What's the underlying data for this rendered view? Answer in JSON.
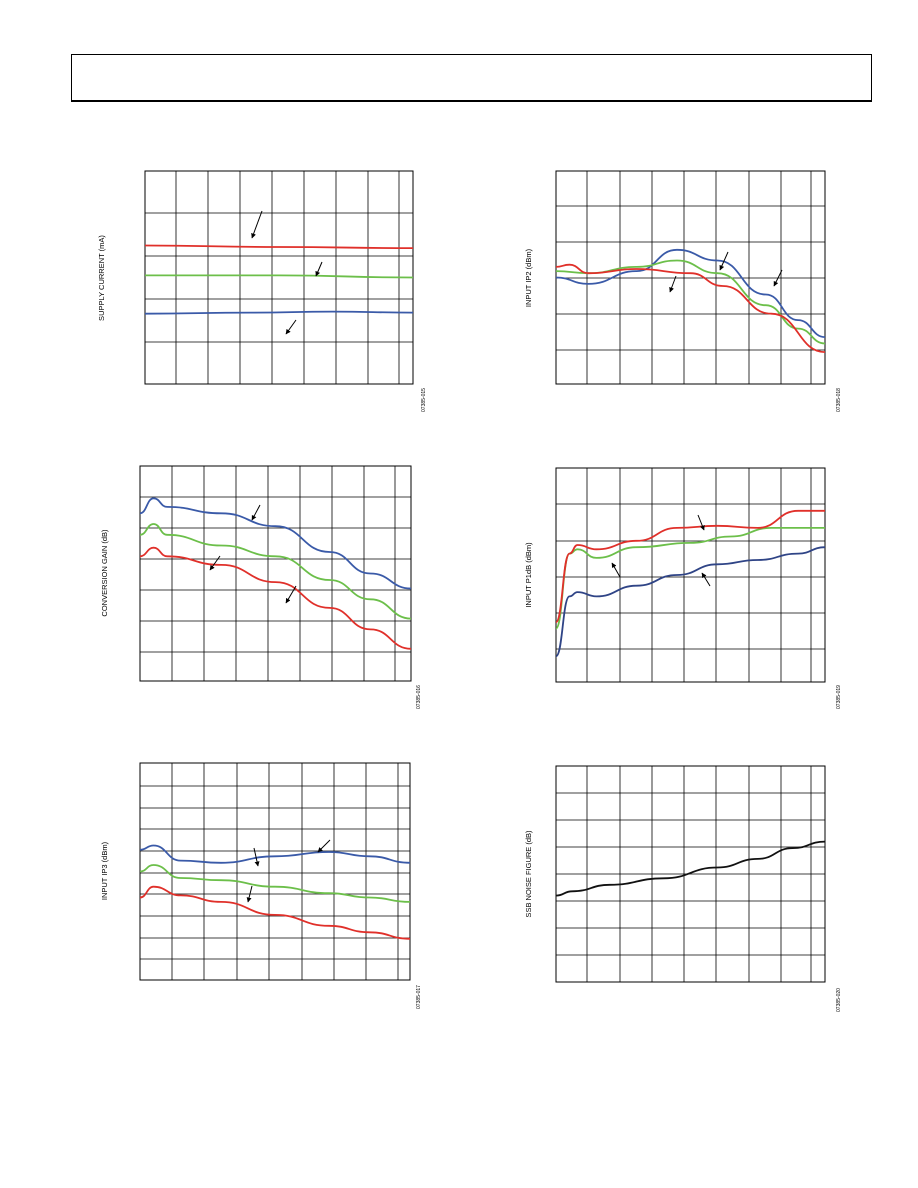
{
  "chart_data": [
    {
      "type": "line",
      "ylabel": "SUPPLY CURRENT (mA)",
      "figure_id": "07385-015",
      "series": [
        {
          "color": "#3a5aa8",
          "points": [
            [
              0,
              0.33
            ],
            [
              0.4,
              0.335
            ],
            [
              0.7,
              0.34
            ],
            [
              1,
              0.335
            ]
          ]
        },
        {
          "color": "#6cbf4a",
          "points": [
            [
              0,
              0.51
            ],
            [
              0.5,
              0.51
            ],
            [
              1,
              0.5
            ]
          ]
        },
        {
          "color": "#e0302a",
          "points": [
            [
              0,
              0.65
            ],
            [
              0.5,
              0.643
            ],
            [
              1,
              0.638
            ]
          ]
        }
      ]
    },
    {
      "type": "line",
      "ylabel": "INPUT IP2 (dBm)",
      "figure_id": "07385-018",
      "series": [
        {
          "color": "#3a5aa8",
          "points": [
            [
              0,
              0.5
            ],
            [
              0.12,
              0.47
            ],
            [
              0.3,
              0.53
            ],
            [
              0.45,
              0.63
            ],
            [
              0.6,
              0.58
            ],
            [
              0.78,
              0.42
            ],
            [
              0.9,
              0.3
            ],
            [
              1,
              0.22
            ]
          ]
        },
        {
          "color": "#6cbf4a",
          "points": [
            [
              0,
              0.53
            ],
            [
              0.12,
              0.52
            ],
            [
              0.3,
              0.55
            ],
            [
              0.45,
              0.58
            ],
            [
              0.6,
              0.52
            ],
            [
              0.78,
              0.37
            ],
            [
              0.9,
              0.26
            ],
            [
              1,
              0.19
            ]
          ]
        },
        {
          "color": "#e0302a",
          "points": [
            [
              0,
              0.55
            ],
            [
              0.05,
              0.56
            ],
            [
              0.12,
              0.52
            ],
            [
              0.3,
              0.54
            ],
            [
              0.5,
              0.52
            ],
            [
              0.62,
              0.46
            ],
            [
              0.8,
              0.33
            ],
            [
              1,
              0.15
            ]
          ]
        }
      ]
    },
    {
      "type": "line",
      "ylabel": "CONVERSION GAIN (dB)",
      "figure_id": "07385-016",
      "series": [
        {
          "color": "#3a5aa8",
          "points": [
            [
              0,
              0.78
            ],
            [
              0.05,
              0.85
            ],
            [
              0.1,
              0.81
            ],
            [
              0.3,
              0.78
            ],
            [
              0.5,
              0.72
            ],
            [
              0.7,
              0.6
            ],
            [
              0.85,
              0.5
            ],
            [
              1,
              0.43
            ]
          ]
        },
        {
          "color": "#6cbf4a",
          "points": [
            [
              0,
              0.68
            ],
            [
              0.05,
              0.73
            ],
            [
              0.1,
              0.68
            ],
            [
              0.3,
              0.63
            ],
            [
              0.5,
              0.58
            ],
            [
              0.7,
              0.47
            ],
            [
              0.85,
              0.38
            ],
            [
              1,
              0.29
            ]
          ]
        },
        {
          "color": "#e0302a",
          "points": [
            [
              0,
              0.58
            ],
            [
              0.05,
              0.62
            ],
            [
              0.1,
              0.58
            ],
            [
              0.3,
              0.54
            ],
            [
              0.5,
              0.46
            ],
            [
              0.7,
              0.34
            ],
            [
              0.85,
              0.24
            ],
            [
              1,
              0.15
            ]
          ]
        }
      ]
    },
    {
      "type": "line",
      "ylabel": "INPUT P1dB (dBm)",
      "figure_id": "07385-019",
      "series": [
        {
          "color": "#2f4486",
          "points": [
            [
              0,
              0.12
            ],
            [
              0.05,
              0.4
            ],
            [
              0.08,
              0.42
            ],
            [
              0.15,
              0.4
            ],
            [
              0.3,
              0.45
            ],
            [
              0.45,
              0.5
            ],
            [
              0.6,
              0.55
            ],
            [
              0.75,
              0.57
            ],
            [
              0.9,
              0.6
            ],
            [
              1,
              0.63
            ]
          ]
        },
        {
          "color": "#6cbf4a",
          "points": [
            [
              0,
              0.25
            ],
            [
              0.05,
              0.6
            ],
            [
              0.08,
              0.62
            ],
            [
              0.15,
              0.58
            ],
            [
              0.3,
              0.63
            ],
            [
              0.5,
              0.65
            ],
            [
              0.65,
              0.68
            ],
            [
              0.8,
              0.72
            ],
            [
              1,
              0.72
            ]
          ]
        },
        {
          "color": "#e0302a",
          "points": [
            [
              0,
              0.28
            ],
            [
              0.05,
              0.6
            ],
            [
              0.08,
              0.64
            ],
            [
              0.15,
              0.62
            ],
            [
              0.3,
              0.66
            ],
            [
              0.45,
              0.72
            ],
            [
              0.6,
              0.73
            ],
            [
              0.75,
              0.72
            ],
            [
              0.9,
              0.8
            ],
            [
              1,
              0.8
            ]
          ]
        }
      ]
    },
    {
      "type": "line",
      "ylabel": "INPUT IP3 (dBm)",
      "figure_id": "07385-017",
      "series": [
        {
          "color": "#3a5aa8",
          "points": [
            [
              0,
              0.6
            ],
            [
              0.05,
              0.62
            ],
            [
              0.15,
              0.55
            ],
            [
              0.3,
              0.54
            ],
            [
              0.5,
              0.57
            ],
            [
              0.7,
              0.59
            ],
            [
              0.85,
              0.57
            ],
            [
              1,
              0.54
            ]
          ]
        },
        {
          "color": "#6cbf4a",
          "points": [
            [
              0,
              0.5
            ],
            [
              0.05,
              0.53
            ],
            [
              0.15,
              0.47
            ],
            [
              0.3,
              0.46
            ],
            [
              0.5,
              0.43
            ],
            [
              0.7,
              0.4
            ],
            [
              0.85,
              0.38
            ],
            [
              1,
              0.36
            ]
          ]
        },
        {
          "color": "#e0302a",
          "points": [
            [
              0,
              0.38
            ],
            [
              0.05,
              0.43
            ],
            [
              0.15,
              0.39
            ],
            [
              0.3,
              0.36
            ],
            [
              0.5,
              0.3
            ],
            [
              0.7,
              0.25
            ],
            [
              0.85,
              0.22
            ],
            [
              1,
              0.19
            ]
          ]
        }
      ]
    },
    {
      "type": "line",
      "ylabel": "SSB NOISE FIGURE (dB)",
      "figure_id": "07385-020",
      "series": [
        {
          "color": "#111111",
          "points": [
            [
              0,
              0.4
            ],
            [
              0.06,
              0.42
            ],
            [
              0.2,
              0.45
            ],
            [
              0.4,
              0.48
            ],
            [
              0.6,
              0.53
            ],
            [
              0.75,
              0.57
            ],
            [
              0.88,
              0.62
            ],
            [
              1,
              0.65
            ]
          ]
        }
      ]
    }
  ]
}
